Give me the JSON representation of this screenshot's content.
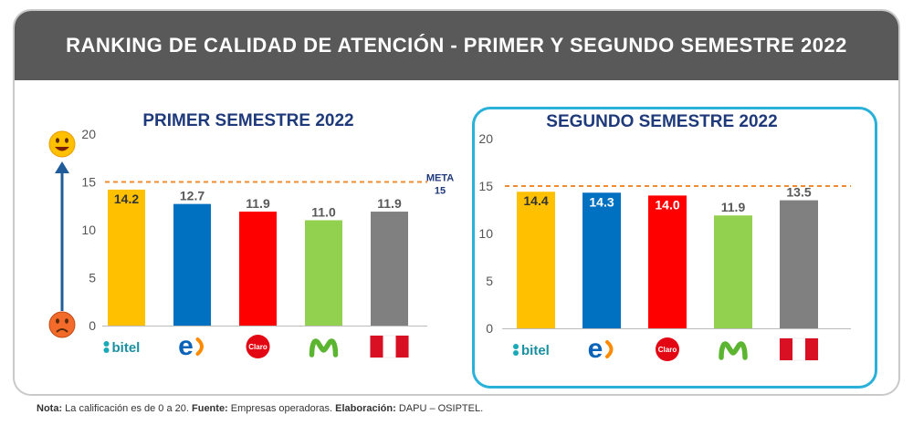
{
  "header": {
    "title": "RANKING DE CALIDAD DE ATENCIÓN - PRIMER Y SEGUNDO SEMESTRE 2022"
  },
  "footnote": {
    "nota_label": "Nota:",
    "nota_text": "La calificación es de 0 a 20.",
    "fuente_label": "Fuente:",
    "fuente_text": "Empresas operadoras.",
    "elaboracion_label": "Elaboración:",
    "elaboracion_text": "DAPU – OSIPTEL."
  },
  "brands": [
    {
      "name": "bitel",
      "text": "bitel",
      "color": "#1aa9b7"
    },
    {
      "name": "entel",
      "text": "e",
      "color": "#0a63b8",
      "accent": "#ff8a00"
    },
    {
      "name": "claro",
      "text": "Claro",
      "color": "#e30613"
    },
    {
      "name": "movistar",
      "text": "M",
      "color": "#5cb531"
    },
    {
      "name": "peru",
      "text": "",
      "color": "#d91023"
    }
  ],
  "colors": {
    "bitel": "#ffc000",
    "entel": "#0070c0",
    "claro": "#ff0000",
    "movistar": "#92d050",
    "peru": "#808080",
    "meta_line": "#f08c2e",
    "arrow": "#1f5c99",
    "subtitle": "#1f3a7a"
  },
  "chart_data": [
    {
      "type": "bar",
      "title": "PRIMER SEMESTRE 2022",
      "categories": [
        "bitel",
        "entel",
        "claro",
        "movistar",
        "peru"
      ],
      "values": [
        14.2,
        12.7,
        11.9,
        11.0,
        11.9
      ],
      "value_labels": [
        "14.2",
        "12.7",
        "11.9",
        "11.0",
        "11.9"
      ],
      "label_inside": [
        true,
        false,
        false,
        false,
        false
      ],
      "ylim": [
        0,
        20
      ],
      "yticks": [
        0,
        5,
        10,
        15,
        20
      ],
      "reference_line": {
        "value": 15,
        "label_line1": "META",
        "label_line2": "15"
      },
      "legend_icons": {
        "top": "happy-face",
        "bottom": "sad-face"
      }
    },
    {
      "type": "bar",
      "title": "SEGUNDO SEMESTRE 2022",
      "categories": [
        "bitel",
        "entel",
        "claro",
        "movistar",
        "peru"
      ],
      "values": [
        14.4,
        14.3,
        14.0,
        11.9,
        13.5
      ],
      "value_labels": [
        "14.4",
        "14.3",
        "14.0",
        "11.9",
        "13.5"
      ],
      "label_inside": [
        true,
        true,
        true,
        false,
        false
      ],
      "ylim": [
        0,
        20
      ],
      "yticks": [
        0,
        5,
        10,
        15,
        20
      ],
      "reference_line": {
        "value": 15
      }
    }
  ]
}
